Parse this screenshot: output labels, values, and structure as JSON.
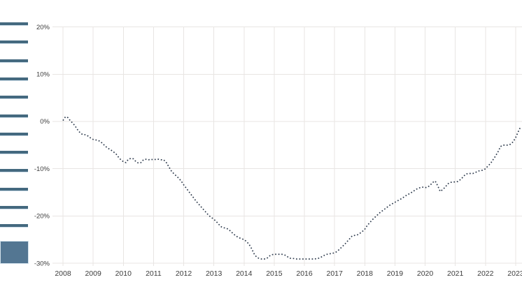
{
  "chart_data": {
    "type": "line",
    "title": "",
    "line_style": "dotted",
    "line_color": "#2d3a4c",
    "grid_color": "#e8e5e3",
    "tick_label_color": "#3c3c3c",
    "background_color": "#ffffff",
    "grid": true,
    "legend": "none",
    "xlabel": "",
    "ylabel": "",
    "ylim": [
      -30,
      20
    ],
    "y_tick_values": [
      20,
      10,
      0,
      -10,
      -20,
      -30
    ],
    "y_tick_labels": [
      "20%",
      "10%",
      "0%",
      "-10%",
      "-20%",
      "-30%"
    ],
    "x_tick_labels": [
      "2008",
      "2009",
      "2010",
      "2011",
      "2012",
      "2013",
      "2014",
      "2015",
      "2016",
      "2017",
      "2018",
      "2019",
      "2020",
      "2021",
      "2022",
      "2023"
    ],
    "frequency": "monthly",
    "x_start_label": "2008",
    "series": [
      {
        "name": "percent-change-line",
        "values": [
          0.2,
          1.0,
          0.8,
          0.1,
          -0.4,
          -1.1,
          -1.9,
          -2.5,
          -2.8,
          -2.8,
          -3.1,
          -3.5,
          -3.8,
          -3.9,
          -4.0,
          -4.3,
          -4.8,
          -5.3,
          -5.7,
          -6.0,
          -6.4,
          -6.8,
          -7.5,
          -8.1,
          -8.5,
          -8.7,
          -8.0,
          -7.8,
          -7.9,
          -8.5,
          -8.8,
          -8.7,
          -8.1,
          -8.0,
          -8.1,
          -8.0,
          -8.1,
          -8.0,
          -8.0,
          -8.1,
          -8.1,
          -8.6,
          -9.5,
          -10.4,
          -11.0,
          -11.5,
          -12.0,
          -12.6,
          -13.4,
          -14.1,
          -14.8,
          -15.5,
          -16.2,
          -16.9,
          -17.5,
          -18.1,
          -18.7,
          -19.3,
          -19.9,
          -20.3,
          -20.7,
          -21.2,
          -21.8,
          -22.3,
          -22.5,
          -22.6,
          -22.9,
          -23.4,
          -23.9,
          -24.3,
          -24.6,
          -24.8,
          -25.0,
          -25.4,
          -26.0,
          -26.9,
          -28.0,
          -28.7,
          -29.0,
          -29.1,
          -29.1,
          -29.0,
          -28.5,
          -28.2,
          -28.1,
          -28.1,
          -28.1,
          -28.1,
          -28.2,
          -28.5,
          -28.9,
          -29.0,
          -29.0,
          -29.1,
          -29.1,
          -29.1,
          -29.1,
          -29.1,
          -29.1,
          -29.1,
          -29.1,
          -29.0,
          -28.9,
          -28.6,
          -28.3,
          -28.1,
          -28.0,
          -27.9,
          -27.8,
          -27.5,
          -27.0,
          -26.5,
          -26.0,
          -25.4,
          -24.8,
          -24.2,
          -24.1,
          -24.0,
          -23.7,
          -23.3,
          -22.8,
          -22.0,
          -21.4,
          -20.8,
          -20.3,
          -19.8,
          -19.3,
          -18.9,
          -18.5,
          -18.1,
          -17.7,
          -17.4,
          -17.1,
          -16.8,
          -16.5,
          -16.2,
          -15.8,
          -15.5,
          -15.2,
          -14.9,
          -14.5,
          -14.2,
          -14.0,
          -13.9,
          -14.0,
          -13.9,
          -13.5,
          -12.9,
          -12.6,
          -13.6,
          -14.8,
          -14.4,
          -13.9,
          -13.2,
          -12.9,
          -12.8,
          -12.8,
          -12.7,
          -12.3,
          -11.8,
          -11.2,
          -11.0,
          -11.0,
          -11.0,
          -10.8,
          -10.5,
          -10.4,
          -10.3,
          -10.0,
          -9.4,
          -8.9,
          -8.1,
          -7.3,
          -6.4,
          -5.3,
          -5.0,
          -5.0,
          -5.0,
          -4.8,
          -4.3,
          -3.4,
          -2.2,
          -1.1
        ]
      }
    ]
  },
  "left_panel": {
    "bar_count": 12,
    "bar_color": "#44697f",
    "bar_edge_color": "#ccdde9",
    "block_color": "#537692",
    "block_edge_color": "#d3e2ec"
  }
}
